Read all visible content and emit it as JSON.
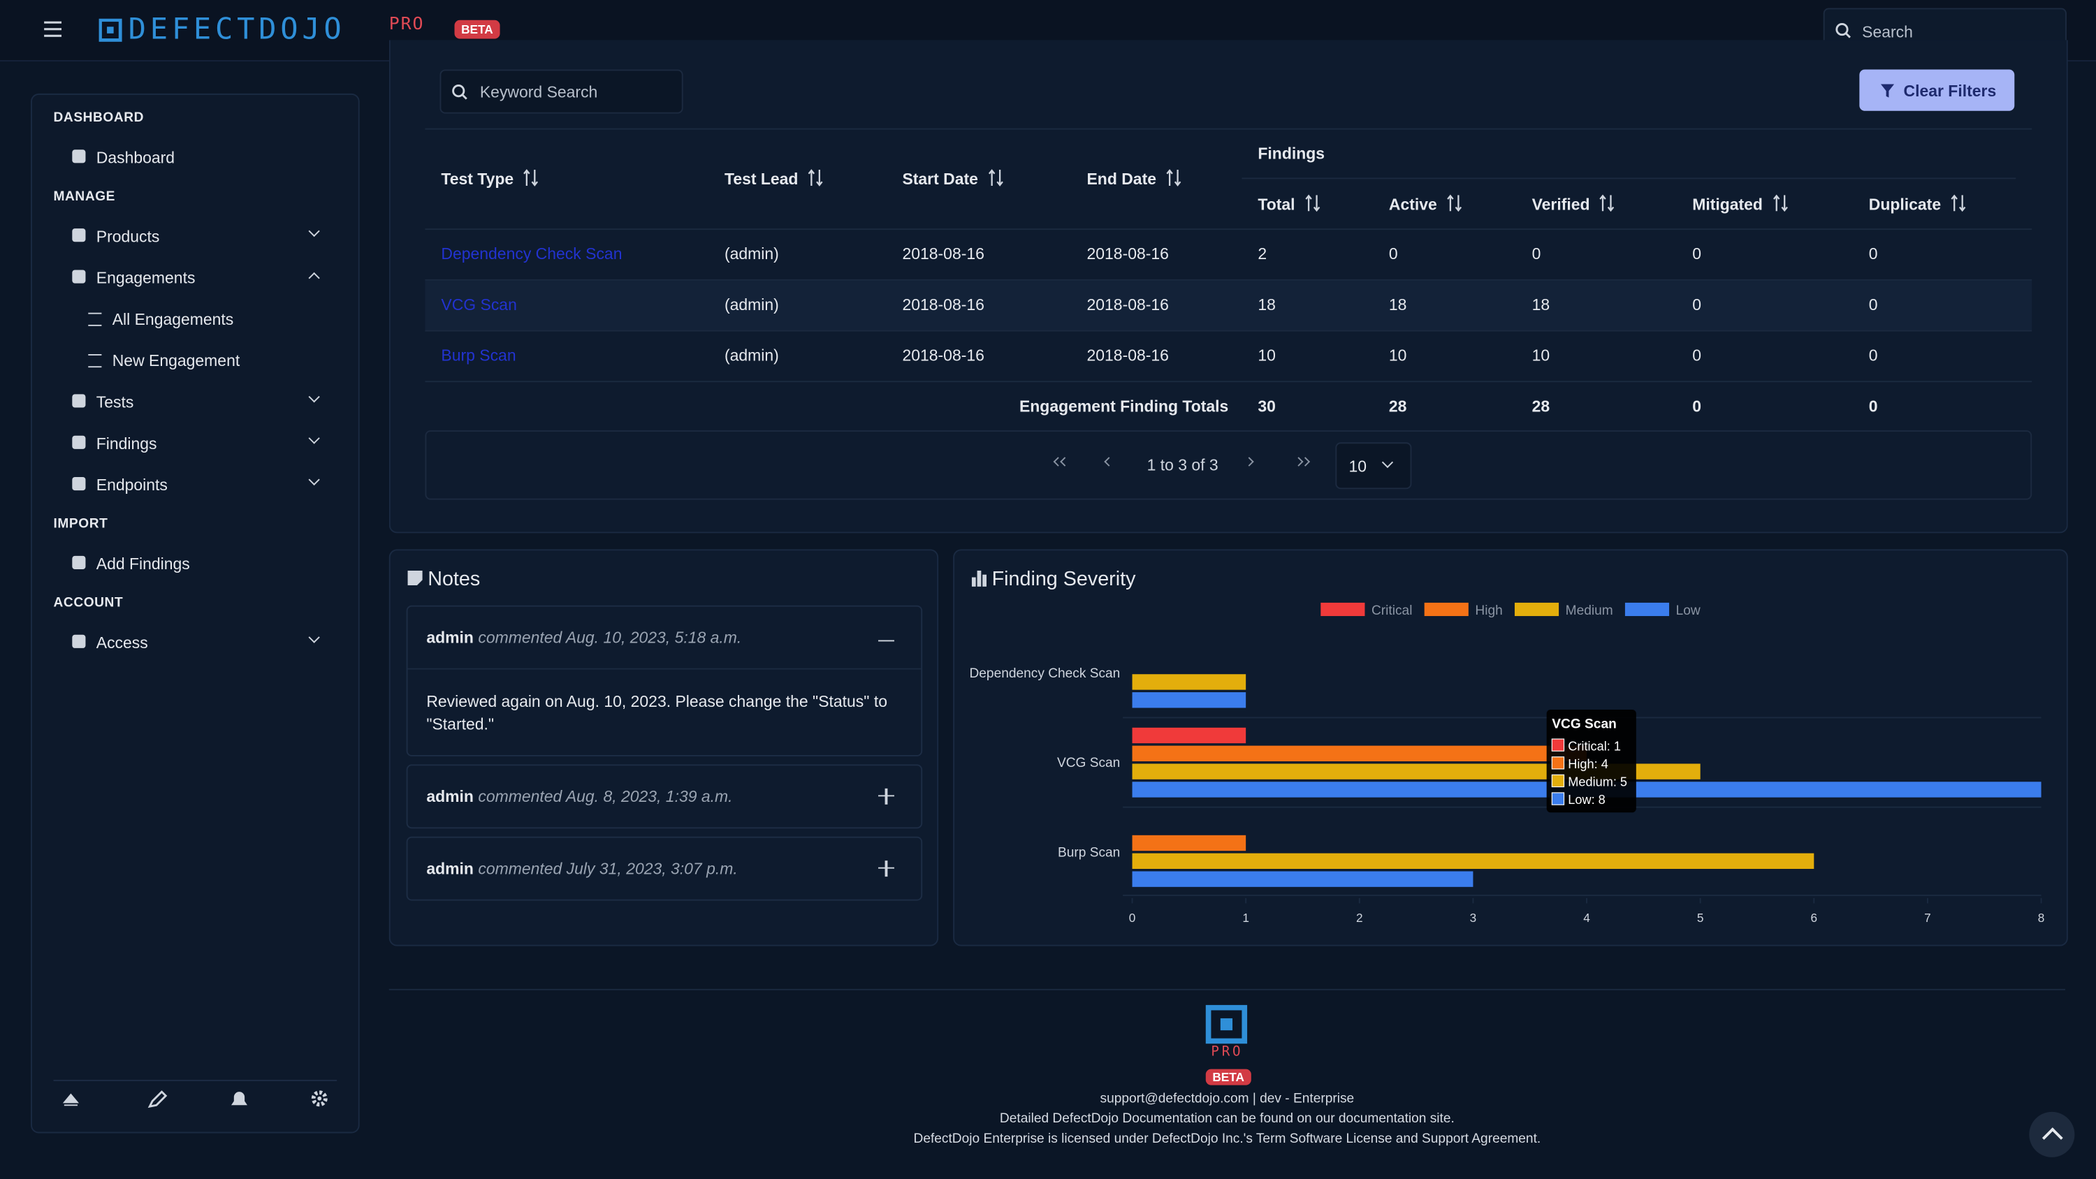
{
  "header": {
    "logo": "DEFECTDOJO",
    "logo_suffix": "PRO",
    "badge": "BETA",
    "search_placeholder": "Search"
  },
  "sidebar": {
    "sections": [
      {
        "title": "DASHBOARD",
        "items": [
          {
            "label": "Dashboard"
          }
        ]
      },
      {
        "title": "MANAGE",
        "items": [
          {
            "label": "Products"
          },
          {
            "label": "Engagements",
            "children": [
              {
                "label": "All Engagements"
              },
              {
                "label": "New Engagement"
              }
            ]
          },
          {
            "label": "Tests"
          },
          {
            "label": "Findings"
          },
          {
            "label": "Endpoints"
          }
        ]
      },
      {
        "title": "IMPORT",
        "items": [
          {
            "label": "Add Findings"
          }
        ]
      },
      {
        "title": "ACCOUNT",
        "items": [
          {
            "label": "Access"
          }
        ]
      }
    ]
  },
  "table": {
    "search_placeholder": "Keyword Search",
    "clear_button": "Clear Filters",
    "headers": [
      "Test Type",
      "Test Lead",
      "Start Date",
      "End Date"
    ],
    "group_header": "Findings",
    "sub_headers": [
      "Total",
      "Active",
      "Verified",
      "Mitigated",
      "Duplicate"
    ],
    "rows": [
      [
        "Dependency Check Scan",
        "(admin)",
        "2018-08-16",
        "2018-08-16",
        "2",
        "0",
        "0",
        "0",
        "0"
      ],
      [
        "VCG Scan",
        "(admin)",
        "2018-08-16",
        "2018-08-16",
        "18",
        "18",
        "18",
        "0",
        "0"
      ],
      [
        "Burp Scan",
        "(admin)",
        "2018-08-16",
        "2018-08-16",
        "10",
        "10",
        "10",
        "0",
        "0"
      ]
    ],
    "totals": {
      "label": "Engagement Finding Totals",
      "values": [
        "30",
        "28",
        "28",
        "0",
        "0"
      ]
    },
    "pagination": {
      "summary": "1 to 3 of 3",
      "page_size": "10"
    }
  },
  "notes": {
    "title": "Notes",
    "items": [
      {
        "author": "admin",
        "meta": "commented Aug. 10, 2023, 5:18 a.m.",
        "body": "Reviewed again on Aug. 10, 2023. Please change the \"Status\" to \"Started.\""
      },
      {
        "author": "admin",
        "meta": "commented Aug. 8, 2023, 1:39 a.m."
      },
      {
        "author": "admin",
        "meta": "commented July 31, 2023, 3:07 p.m."
      }
    ]
  },
  "severity_chart": {
    "type": "bar",
    "title": "Finding Severity",
    "categories": [
      "Dependency Check Scan",
      "VCG Scan",
      "Burp Scan"
    ],
    "series": [
      {
        "name": "Critical",
        "color": "#f03a3a",
        "values": [
          0,
          1,
          0
        ]
      },
      {
        "name": "High",
        "color": "#f47216",
        "values": [
          0,
          4,
          1
        ]
      },
      {
        "name": "Medium",
        "color": "#e3ae0c",
        "values": [
          1,
          5,
          6
        ]
      },
      {
        "name": "Low",
        "color": "#3b7ded",
        "values": [
          1,
          8,
          3
        ]
      }
    ],
    "xlim": [
      0,
      8
    ],
    "xticks": [
      0,
      1,
      2,
      3,
      4,
      5,
      6,
      7,
      8
    ],
    "tooltip": {
      "title": "VCG Scan",
      "lines": [
        "Critical: 1",
        "High: 4",
        "Medium: 5",
        "Low: 8"
      ]
    }
  },
  "footer": {
    "logo_suffix": "PRO",
    "badge": "BETA",
    "lines": [
      "support@defectdojo.com | dev - Enterprise",
      "Detailed DefectDojo Documentation can be found on our documentation site.",
      "DefectDojo Enterprise is licensed under DefectDojo Inc.'s Term Software License and Support Agreement."
    ]
  }
}
